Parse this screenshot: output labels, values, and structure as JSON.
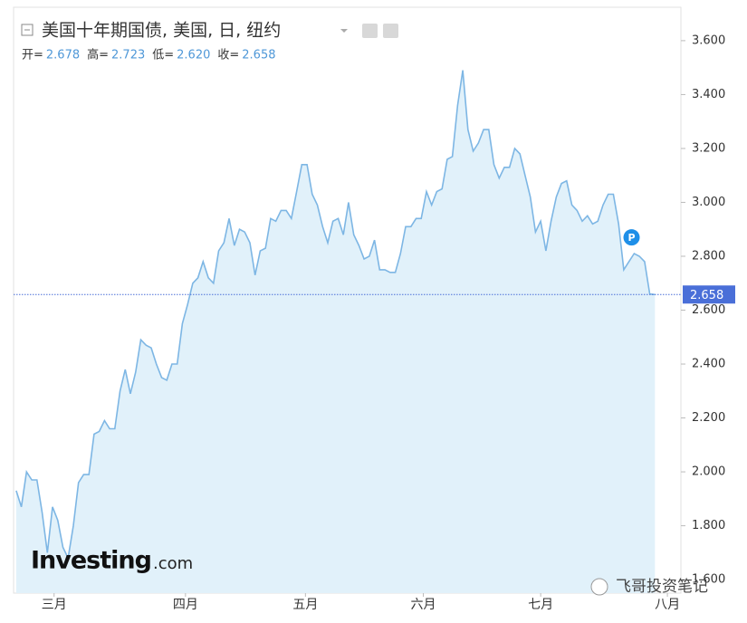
{
  "chart_data": {
    "type": "area",
    "title": "美国十年期国债, 美国, 日, 纽约",
    "ohlc_labels": [
      "开=",
      "高=",
      "低=",
      "收="
    ],
    "ohlc_values": [
      2.678,
      2.723,
      2.62,
      2.658
    ],
    "ohlc_value_labels": [
      "2.678",
      "2.723",
      "2.620",
      "2.658"
    ],
    "values": [
      1.93,
      1.87,
      2.0,
      1.97,
      1.97,
      1.85,
      1.7,
      1.87,
      1.82,
      1.72,
      1.68,
      1.8,
      1.96,
      1.99,
      1.99,
      2.14,
      2.15,
      2.19,
      2.16,
      2.16,
      2.3,
      2.38,
      2.29,
      2.37,
      2.49,
      2.47,
      2.46,
      2.4,
      2.35,
      2.34,
      2.4,
      2.4,
      2.55,
      2.62,
      2.7,
      2.72,
      2.78,
      2.72,
      2.7,
      2.82,
      2.85,
      2.94,
      2.84,
      2.9,
      2.89,
      2.85,
      2.73,
      2.82,
      2.83,
      2.94,
      2.93,
      2.97,
      2.97,
      2.94,
      3.04,
      3.14,
      3.14,
      3.03,
      2.99,
      2.91,
      2.85,
      2.93,
      2.94,
      2.88,
      3.0,
      2.88,
      2.84,
      2.79,
      2.8,
      2.86,
      2.75,
      2.75,
      2.74,
      2.74,
      2.81,
      2.91,
      2.91,
      2.94,
      2.94,
      3.04,
      2.99,
      3.04,
      3.05,
      3.16,
      3.17,
      3.36,
      3.49,
      3.27,
      3.19,
      3.22,
      3.27,
      3.27,
      3.14,
      3.09,
      3.13,
      3.13,
      3.2,
      3.18,
      3.1,
      3.02,
      2.89,
      2.93,
      2.82,
      2.93,
      3.02,
      3.07,
      3.08,
      2.99,
      2.97,
      2.93,
      2.95,
      2.92,
      2.93,
      2.99,
      3.03,
      3.03,
      2.92,
      2.75,
      2.78,
      2.81,
      2.8,
      2.78,
      2.66,
      2.658
    ],
    "color": "#7db6e4",
    "fill_color": "#e1f1fa",
    "xlim": [
      -0.5,
      128
    ],
    "xticks": [
      {
        "value": 7.3,
        "label": "三月"
      },
      {
        "value": 32.6,
        "label": "四月"
      },
      {
        "value": 55.7,
        "label": "五月"
      },
      {
        "value": 78.4,
        "label": "六月"
      },
      {
        "value": 101.0,
        "label": "七月"
      },
      {
        "value": 125.4,
        "label": "八月"
      }
    ],
    "ylim": [
      1.55,
      3.724
    ],
    "yticks": [
      {
        "value": 1.6,
        "label": "1.600"
      },
      {
        "value": 1.8,
        "label": "1.800"
      },
      {
        "value": 2.0,
        "label": "2.000"
      },
      {
        "value": 2.2,
        "label": "2.200"
      },
      {
        "value": 2.4,
        "label": "2.400"
      },
      {
        "value": 2.6,
        "label": "2.600"
      },
      {
        "value": 2.8,
        "label": "2.800"
      },
      {
        "value": 3.0,
        "label": "3.000"
      },
      {
        "value": 3.2,
        "label": "3.200"
      },
      {
        "value": 3.4,
        "label": "3.400"
      },
      {
        "value": 3.6,
        "label": "3.600"
      }
    ],
    "last": {
      "value": 2.658,
      "label": "2.658"
    },
    "marker": {
      "x": 118.5,
      "y": 2.87,
      "label": "P"
    },
    "logo": [
      "Investing",
      ".com"
    ],
    "watermark": "飞哥投资笔记"
  }
}
